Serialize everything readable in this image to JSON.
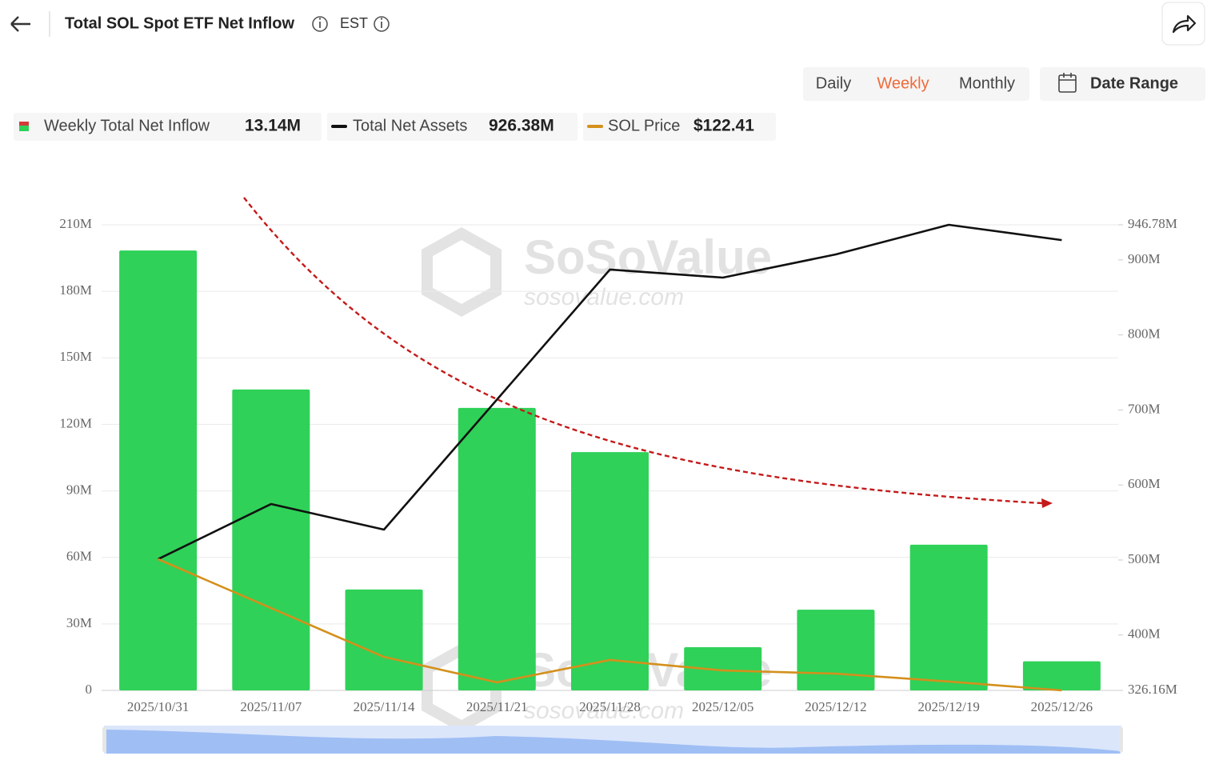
{
  "header": {
    "title": "Total SOL Spot ETF Net Inflow",
    "timezone": "EST"
  },
  "periods": [
    {
      "label": "Daily"
    },
    {
      "label": "Weekly",
      "active": true
    },
    {
      "label": "Monthly"
    }
  ],
  "date_range": "Date Range",
  "watermark": {
    "brand": "SoSoValue",
    "site": "sosovalue.com"
  },
  "chart_data": {
    "type": "bar",
    "categories": [
      "2025/10/31",
      "2025/11/07",
      "2025/11/14",
      "2025/11/21",
      "2025/11/28",
      "2025/12/05",
      "2025/12/12",
      "2025/12/19",
      "2025/12/26"
    ],
    "series": [
      {
        "name": "Weekly Total Net Inflow",
        "type": "bar",
        "color": "#2fd158",
        "latest_label": "13.14M",
        "values": [
          198.4,
          135.7,
          45.5,
          127.4,
          107.5,
          19.5,
          36.4,
          65.7,
          13.14
        ]
      },
      {
        "name": "Total Net Assets",
        "type": "line",
        "axis": "y2",
        "color": "#111111",
        "latest_label": "926.38M",
        "values": [
          501.1,
          574.6,
          540.5,
          713.8,
          887.1,
          876.4,
          907.3,
          946.78,
          926.38
        ]
      },
      {
        "name": "SOL Price",
        "type": "line",
        "axis": "hidden",
        "color": "#d4901c",
        "latest_label": "$122.41",
        "values": [
          187.4,
          163.2,
          139.0,
          126.4,
          137.5,
          132.3,
          130.7,
          126.8,
          122.41
        ]
      }
    ],
    "ylim": [
      0,
      210
    ],
    "yticks": [
      0,
      {
        "value": 30,
        "label": "30M"
      },
      {
        "value": 60,
        "label": "60M"
      },
      {
        "value": 90,
        "label": "90M"
      },
      {
        "value": 120,
        "label": "120M"
      },
      {
        "value": 150,
        "label": "150M"
      },
      {
        "value": 180,
        "label": "180M"
      },
      {
        "value": 210,
        "label": "210M"
      }
    ],
    "y2lim": [
      326.16,
      946.78
    ],
    "y2ticks": [
      {
        "value": 326.16,
        "label": "326.16M"
      },
      {
        "value": 400,
        "label": "400M"
      },
      {
        "value": 500,
        "label": "500M"
      },
      {
        "value": 600,
        "label": "600M"
      },
      {
        "value": 700,
        "label": "700M"
      },
      {
        "value": 800,
        "label": "800M"
      },
      {
        "value": 900,
        "label": "900M"
      },
      {
        "value": 946.78,
        "label": "946.78M"
      }
    ],
    "grid": true
  }
}
